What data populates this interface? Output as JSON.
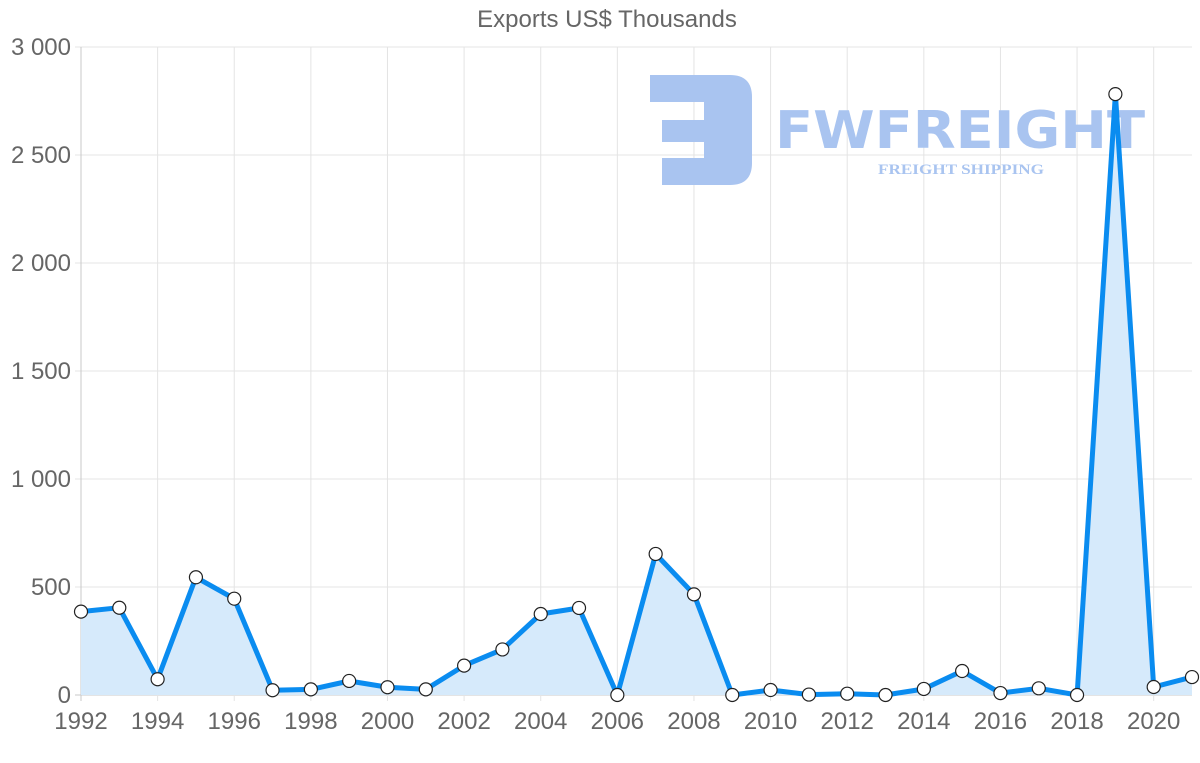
{
  "chart_data": {
    "type": "line",
    "title": "Exports US$ Thousands",
    "xlabel": "",
    "ylabel": "",
    "ylim": [
      0,
      3000
    ],
    "yticks": [
      "0",
      "500",
      "1 000",
      "1 500",
      "2 000",
      "2 500",
      "3 000"
    ],
    "ytick_values": [
      0,
      500,
      1000,
      1500,
      2000,
      2500,
      3000
    ],
    "xticks": [
      "1992",
      "1994",
      "1996",
      "1998",
      "2000",
      "2002",
      "2004",
      "2006",
      "2008",
      "2010",
      "2012",
      "2014",
      "2016",
      "2018",
      "2020"
    ],
    "grid": true,
    "fill": true,
    "legend": null,
    "x": [
      1992,
      1993,
      1994,
      1995,
      1996,
      1997,
      1998,
      1999,
      2000,
      2001,
      2002,
      2003,
      2004,
      2005,
      2006,
      2007,
      2008,
      2009,
      2010,
      2011,
      2012,
      2013,
      2014,
      2015,
      2016,
      2017,
      2018,
      2019,
      2020,
      2021
    ],
    "series": [
      {
        "name": "Exports US$ Thousands",
        "color": "#0a8cf0",
        "fill_color": "#d6eafb",
        "values": [
          386,
          404,
          73,
          545,
          446,
          22,
          26,
          65,
          36,
          26,
          136,
          211,
          375,
          403,
          0,
          653,
          466,
          0,
          23,
          2,
          6,
          0,
          28,
          111,
          9,
          31,
          0,
          2782,
          37,
          83
        ]
      }
    ]
  },
  "watermark": {
    "brand": "FWFREIGHT",
    "tagline": "FREIGHT SHIPPING"
  }
}
